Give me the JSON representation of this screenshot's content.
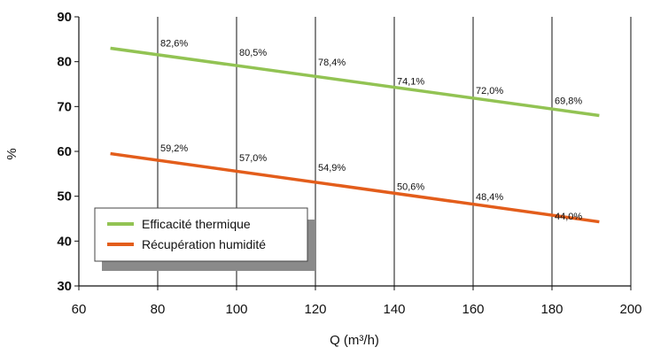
{
  "chart_data": {
    "type": "line",
    "title": "",
    "xlabel": "Q (m³/h)",
    "ylabel": "%",
    "xlim": [
      60,
      200
    ],
    "ylim": [
      30,
      90
    ],
    "x_ticks": [
      "60",
      "80",
      "100",
      "120",
      "140",
      "160",
      "180",
      "200"
    ],
    "y_ticks": [
      "30",
      "40",
      "50",
      "60",
      "70",
      "80",
      "90"
    ],
    "grid": "vertical",
    "legend_position": "bottom-left",
    "series": [
      {
        "name": "Efficacité thermique",
        "color": "#92c353",
        "line": {
          "x": [
            68,
            192
          ],
          "y": [
            83.0,
            68.0
          ]
        },
        "labels": [
          {
            "x": 80,
            "y": 82.6,
            "text": "82,6%"
          },
          {
            "x": 100,
            "y": 80.5,
            "text": "80,5%"
          },
          {
            "x": 120,
            "y": 78.4,
            "text": "78,4%"
          },
          {
            "x": 140,
            "y": 74.1,
            "text": "74,1%"
          },
          {
            "x": 160,
            "y": 72.0,
            "text": "72,0%"
          },
          {
            "x": 180,
            "y": 69.8,
            "text": "69,8%"
          }
        ]
      },
      {
        "name": "Récupération humidité",
        "color": "#e35d1b",
        "line": {
          "x": [
            68,
            192
          ],
          "y": [
            59.5,
            44.3
          ]
        },
        "labels": [
          {
            "x": 80,
            "y": 59.2,
            "text": "59,2%"
          },
          {
            "x": 100,
            "y": 57.0,
            "text": "57,0%"
          },
          {
            "x": 120,
            "y": 54.9,
            "text": "54,9%"
          },
          {
            "x": 140,
            "y": 50.6,
            "text": "50,6%"
          },
          {
            "x": 160,
            "y": 48.4,
            "text": "48,4%"
          },
          {
            "x": 180,
            "y": 44.0,
            "text": "44,0%"
          }
        ]
      }
    ]
  }
}
